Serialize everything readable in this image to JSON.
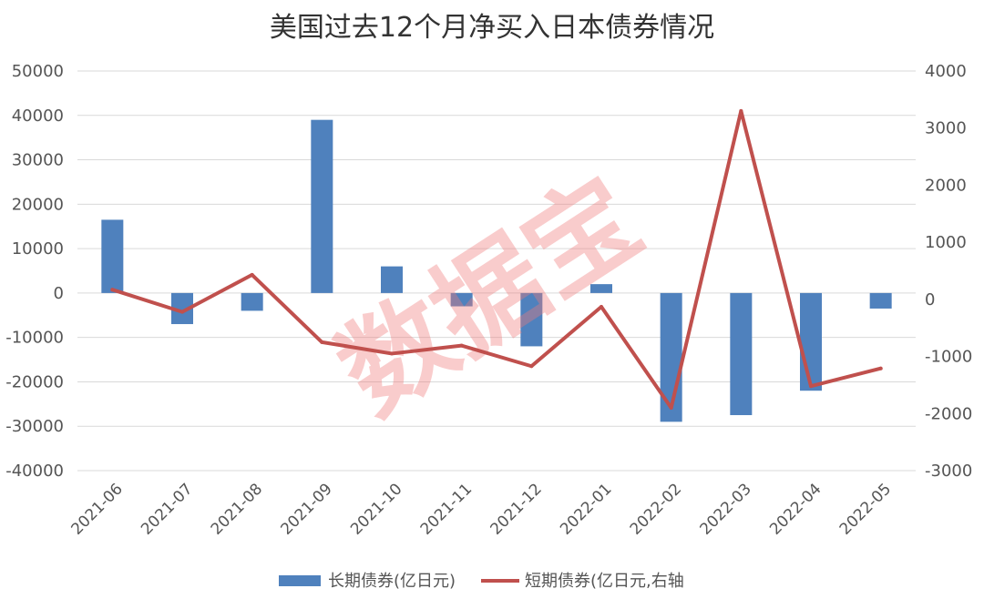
{
  "chart_data": {
    "type": "bar",
    "title": "美国过去12个月净买入日本债券情况",
    "categories": [
      "2021-06",
      "2021-07",
      "2021-08",
      "2021-09",
      "2021-10",
      "2021-11",
      "2021-12",
      "2022-01",
      "2022-02",
      "2022-03",
      "2022-04",
      "2022-05"
    ],
    "series": [
      {
        "name": "长期债券(亿日元)",
        "type": "bar",
        "axis": "left",
        "color": "#4F81BD",
        "values": [
          16500,
          -7000,
          -4000,
          39000,
          6000,
          -3000,
          -12000,
          2000,
          -29000,
          -27500,
          -22000,
          -3500
        ]
      },
      {
        "name": "短期债券(亿日元,右轴",
        "type": "line",
        "axis": "right",
        "color": "#C0504D",
        "values": [
          170,
          -220,
          430,
          -750,
          -950,
          -810,
          -1170,
          -130,
          -1900,
          3300,
          -1520,
          -1210
        ]
      }
    ],
    "y_left": {
      "min": -40000,
      "max": 50000,
      "step": 10000,
      "ticks": [
        "50000",
        "40000",
        "30000",
        "20000",
        "10000",
        "0",
        "-10000",
        "-20000",
        "-30000",
        "-40000"
      ]
    },
    "y_right": {
      "min": -3000,
      "max": 4000,
      "step": 1000,
      "ticks": [
        "4000",
        "3000",
        "2000",
        "1000",
        "0",
        "-1000",
        "-2000",
        "-3000"
      ]
    },
    "grid": true,
    "legend_position": "bottom",
    "watermark": "数据宝"
  }
}
